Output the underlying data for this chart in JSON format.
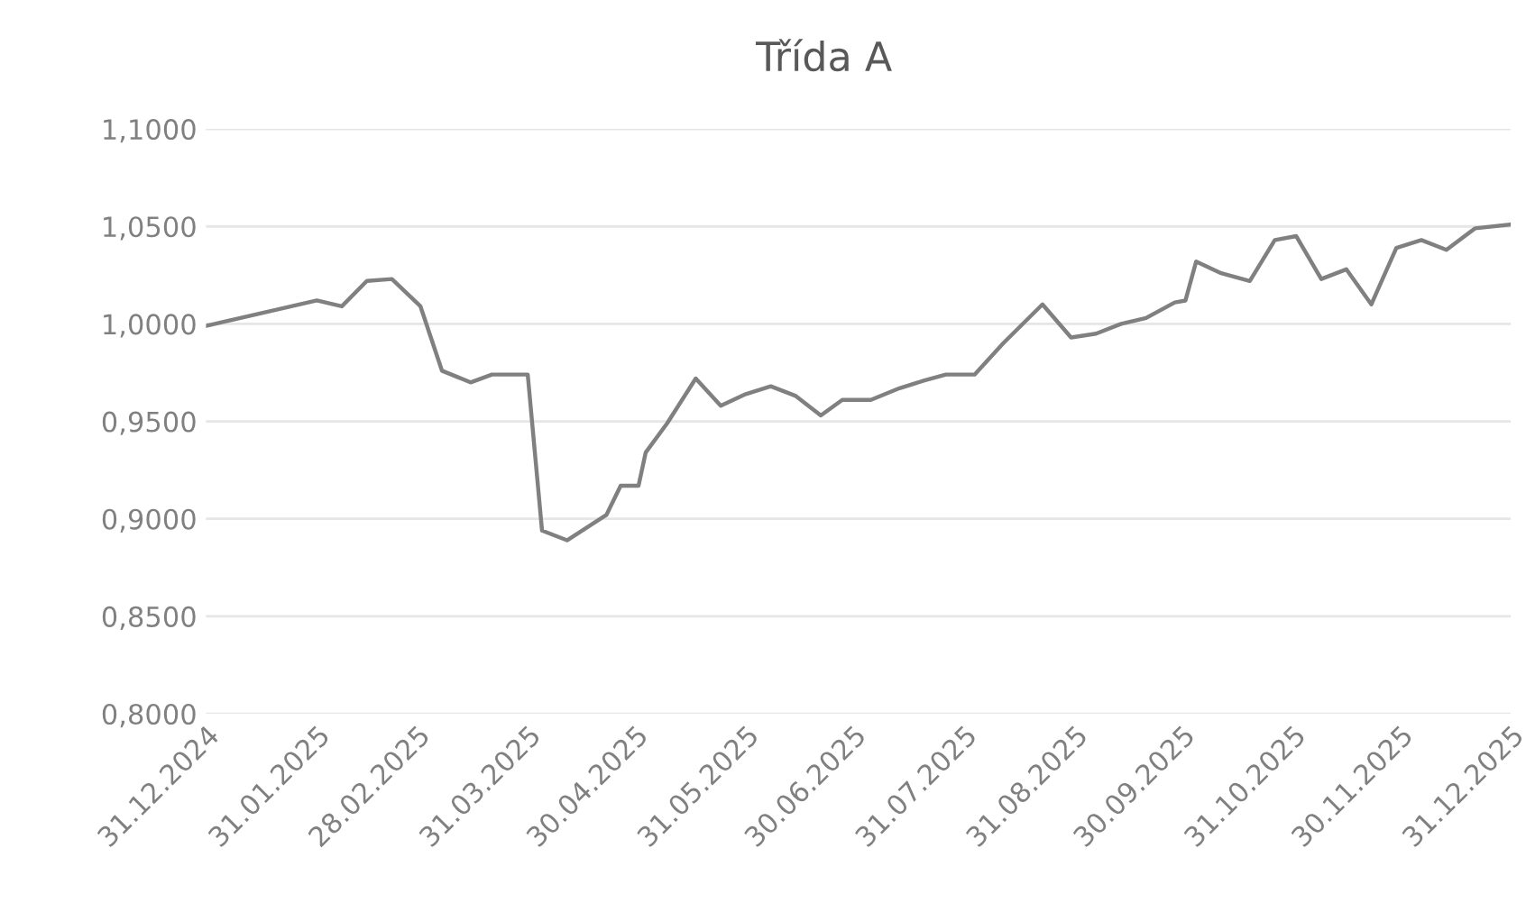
{
  "chart_data": {
    "type": "line",
    "title": "Třída A",
    "x": [
      "2024-12-31",
      "2025-01-31",
      "2025-02-07",
      "2025-02-14",
      "2025-02-21",
      "2025-03-01",
      "2025-03-07",
      "2025-03-15",
      "2025-03-21",
      "2025-03-31",
      "2025-04-04",
      "2025-04-11",
      "2025-04-22",
      "2025-04-26",
      "2025-05-01",
      "2025-05-03",
      "2025-05-09",
      "2025-05-17",
      "2025-05-24",
      "2025-05-31",
      "2025-06-07",
      "2025-06-14",
      "2025-06-21",
      "2025-06-27",
      "2025-07-05",
      "2025-07-13",
      "2025-07-20",
      "2025-07-26",
      "2025-08-03",
      "2025-08-11",
      "2025-08-22",
      "2025-08-30",
      "2025-09-06",
      "2025-09-13",
      "2025-09-20",
      "2025-09-28",
      "2025-10-01",
      "2025-10-04",
      "2025-10-11",
      "2025-10-19",
      "2025-10-26",
      "2025-11-01",
      "2025-11-08",
      "2025-11-15",
      "2025-11-22",
      "2025-11-29",
      "2025-12-06",
      "2025-12-13",
      "2025-12-21",
      "2025-12-31"
    ],
    "series": [
      {
        "color": "#808080",
        "values": [
          0.999,
          1.012,
          1.009,
          1.022,
          1.023,
          1.009,
          0.976,
          0.97,
          0.974,
          0.974,
          0.894,
          0.889,
          0.902,
          0.917,
          0.917,
          0.934,
          0.949,
          0.972,
          0.958,
          0.964,
          0.968,
          0.963,
          0.953,
          0.961,
          0.961,
          0.967,
          0.971,
          0.974,
          0.974,
          0.99,
          1.01,
          0.993,
          0.995,
          1.0,
          1.003,
          1.011,
          1.012,
          1.032,
          1.026,
          1.022,
          1.043,
          1.045,
          1.023,
          1.028,
          1.01,
          1.039,
          1.043,
          1.038,
          1.049,
          1.051
        ]
      }
    ],
    "xlim": [
      "2024-12-31",
      "2025-12-31"
    ],
    "xticks": [
      {
        "value": "2024-12-31",
        "label": "31.12.2024"
      },
      {
        "value": "2025-01-31",
        "label": "31.01.2025"
      },
      {
        "value": "2025-02-28",
        "label": "28.02.2025"
      },
      {
        "value": "2025-03-31",
        "label": "31.03.2025"
      },
      {
        "value": "2025-04-30",
        "label": "30.04.2025"
      },
      {
        "value": "2025-05-31",
        "label": "31.05.2025"
      },
      {
        "value": "2025-06-30",
        "label": "30.06.2025"
      },
      {
        "value": "2025-07-31",
        "label": "31.07.2025"
      },
      {
        "value": "2025-08-31",
        "label": "31.08.2025"
      },
      {
        "value": "2025-09-30",
        "label": "30.09.2025"
      },
      {
        "value": "2025-10-31",
        "label": "31.10.2025"
      },
      {
        "value": "2025-11-30",
        "label": "30.11.2025"
      },
      {
        "value": "2025-12-31",
        "label": "31.12.2025"
      }
    ],
    "ylim": [
      0.8,
      1.1
    ],
    "yticks": [
      {
        "value": 0.8,
        "label": "0,8000"
      },
      {
        "value": 0.85,
        "label": "0,8500"
      },
      {
        "value": 0.9,
        "label": "0,9000"
      },
      {
        "value": 0.95,
        "label": "0,9500"
      },
      {
        "value": 1.0,
        "label": "1,0000"
      },
      {
        "value": 1.05,
        "label": "1,0500"
      },
      {
        "value": 1.1,
        "label": "1,1000"
      }
    ],
    "grid": "y",
    "legend": false,
    "marker": "none",
    "line_style": "solid"
  }
}
